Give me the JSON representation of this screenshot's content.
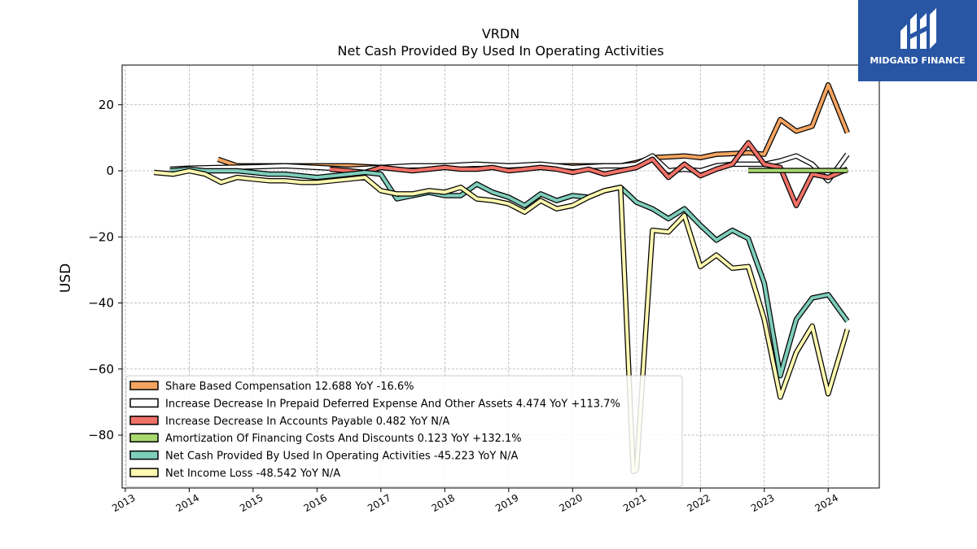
{
  "brand": {
    "name": "MIDGARD FINANCE",
    "icon": "midgard-logo-icon"
  },
  "chart_data": {
    "type": "line",
    "title": "VRDN",
    "subtitle": "Net Cash Provided By Used In Operating Activities",
    "ylabel": "USD",
    "xlabel": "",
    "ylim": [
      -96,
      32
    ],
    "xlim": [
      2012.95,
      2024.8
    ],
    "yticks": [
      20,
      0,
      -20,
      -40,
      -60,
      -80
    ],
    "ytick_labels": [
      "20",
      "0",
      "−20",
      "−40",
      "−60",
      "−80"
    ],
    "xticks": [
      2013,
      2014,
      2015,
      2016,
      2017,
      2018,
      2019,
      2020,
      2021,
      2022,
      2023,
      2024
    ],
    "xtick_labels": [
      "2013",
      "2014",
      "2015",
      "2016",
      "2017",
      "2018",
      "2019",
      "2020",
      "2021",
      "2022",
      "2023",
      "2024"
    ],
    "grid": true,
    "legend_position": "lower-left",
    "series": [
      {
        "name": "Share Based Compensation",
        "legend_label": "Share Based Compensation  12.688 YoY -16.6%",
        "color": "#f4a460",
        "x": [
          2014.45,
          2014.75,
          2015.0,
          2015.5,
          2016.0,
          2016.5,
          2017.0,
          2017.5,
          2018.0,
          2018.5,
          2019.0,
          2019.5,
          2020.0,
          2020.5,
          2020.75,
          2021.0,
          2021.25,
          2021.5,
          2021.75,
          2022.0,
          2022.25,
          2022.5,
          2022.75,
          2023.0,
          2023.25,
          2023.5,
          2023.75,
          2024.0,
          2024.3
        ],
        "y": [
          3.5,
          1.5,
          1.5,
          1.5,
          1.5,
          1.5,
          1.0,
          1.2,
          1.5,
          1.5,
          1.5,
          1.5,
          1.5,
          1.5,
          1.5,
          2.5,
          4.0,
          4.2,
          4.5,
          4.0,
          5.0,
          5.2,
          5.5,
          5.0,
          15.5,
          12.0,
          13.5,
          26.0,
          11.5
        ]
      },
      {
        "name": "Increase Decrease In Prepaid Deferred Expense And Other Assets",
        "legend_label": "Increase Decrease In Prepaid Deferred Expense And Other Assets  4.474 YoY +113.7%",
        "color": "#ffffff",
        "x": [
          2013.7,
          2014.0,
          2014.5,
          2015.0,
          2015.5,
          2016.0,
          2016.5,
          2017.0,
          2017.5,
          2018.0,
          2018.5,
          2019.0,
          2019.5,
          2020.0,
          2020.5,
          2020.75,
          2021.0,
          2021.25,
          2021.5,
          2021.75,
          2022.0,
          2022.25,
          2022.5,
          2022.75,
          2023.0,
          2023.25,
          2023.5,
          2023.75,
          2024.0,
          2024.3
        ],
        "y": [
          0.5,
          0.8,
          1.0,
          1.2,
          1.5,
          1.0,
          0.5,
          1.0,
          1.5,
          1.5,
          2.0,
          1.5,
          2.0,
          1.0,
          1.5,
          1.5,
          2.0,
          4.5,
          0.0,
          0.5,
          0.0,
          1.5,
          2.0,
          2.0,
          2.0,
          3.0,
          4.5,
          2.0,
          -3.0,
          5.0
        ]
      },
      {
        "name": "Increase Decrease In Accounts Payable",
        "legend_label": "Increase Decrease In Accounts Payable  0.482 YoY N/A",
        "color": "#f07167",
        "x": [
          2016.2,
          2016.5,
          2016.75,
          2017.0,
          2017.25,
          2017.5,
          2017.75,
          2018.0,
          2018.25,
          2018.5,
          2018.75,
          2019.0,
          2019.25,
          2019.5,
          2019.75,
          2020.0,
          2020.25,
          2020.5,
          2020.75,
          2021.0,
          2021.25,
          2021.5,
          2021.75,
          2022.0,
          2022.25,
          2022.5,
          2022.75,
          2023.0,
          2023.25,
          2023.5,
          2023.75,
          2024.0,
          2024.3
        ],
        "y": [
          0.5,
          0.0,
          -0.5,
          1.0,
          0.5,
          0.0,
          0.5,
          1.0,
          0.5,
          0.5,
          1.0,
          0.0,
          0.5,
          1.0,
          0.5,
          -0.5,
          0.5,
          -1.0,
          0.0,
          1.0,
          3.5,
          -2.0,
          2.0,
          -1.5,
          0.5,
          2.0,
          8.5,
          2.0,
          1.0,
          -10.5,
          -1.0,
          -2.0,
          0.5
        ]
      },
      {
        "name": "Amortization Of Financing Costs And Discounts",
        "legend_label": "Amortization Of Financing Costs And Discounts  0.123 YoY +132.1%",
        "color": "#a8d86e",
        "x": [
          2022.75,
          2023.0,
          2023.25,
          2023.5,
          2023.75,
          2024.0,
          2024.3
        ],
        "y": [
          0.1,
          0.1,
          0.1,
          0.1,
          0.1,
          0.1,
          0.1
        ]
      },
      {
        "name": "Net Cash Provided By Used In Operating Activities",
        "legend_label": "Net Cash Provided By Used In Operating Activities  -45.223 YoY N/A",
        "color": "#7fcdbb",
        "x": [
          2013.7,
          2014.0,
          2014.25,
          2014.5,
          2014.75,
          2015.0,
          2015.25,
          2015.5,
          2015.75,
          2016.0,
          2016.25,
          2016.5,
          2016.75,
          2017.0,
          2017.25,
          2017.5,
          2017.75,
          2018.0,
          2018.25,
          2018.5,
          2018.75,
          2019.0,
          2019.25,
          2019.5,
          2019.75,
          2020.0,
          2020.25,
          2020.5,
          2020.75,
          2021.0,
          2021.25,
          2021.5,
          2021.75,
          2022.0,
          2022.25,
          2022.5,
          2022.75,
          2023.0,
          2023.25,
          2023.5,
          2023.75,
          2024.0,
          2024.3
        ],
        "y": [
          0.0,
          0.5,
          0.0,
          0.0,
          0.0,
          -0.5,
          -1.0,
          -1.0,
          -1.5,
          -2.0,
          -1.5,
          -1.0,
          -0.5,
          -1.0,
          -8.5,
          -7.5,
          -6.5,
          -7.5,
          -7.5,
          -4.0,
          -6.5,
          -8.0,
          -10.5,
          -7.0,
          -9.0,
          -7.5,
          -8.0,
          -6.0,
          -5.0,
          -9.5,
          -11.5,
          -14.5,
          -11.5,
          -16.5,
          -21.0,
          -18.0,
          -20.5,
          -34.0,
          -62.0,
          -45.0,
          -38.5,
          -37.5,
          -45.5
        ]
      },
      {
        "name": "Net Income Loss",
        "legend_label": "Net Income Loss  -48.542 YoY N/A",
        "color": "#fff8b0",
        "x": [
          2013.45,
          2013.75,
          2014.0,
          2014.25,
          2014.5,
          2014.75,
          2015.0,
          2015.25,
          2015.5,
          2015.75,
          2016.0,
          2016.25,
          2016.5,
          2016.75,
          2017.0,
          2017.25,
          2017.5,
          2017.75,
          2018.0,
          2018.25,
          2018.5,
          2018.75,
          2019.0,
          2019.25,
          2019.5,
          2019.75,
          2020.0,
          2020.25,
          2020.5,
          2020.75,
          2020.95,
          2021.0,
          2021.25,
          2021.5,
          2021.75,
          2022.0,
          2022.25,
          2022.5,
          2022.75,
          2023.0,
          2023.25,
          2023.5,
          2023.75,
          2024.0,
          2024.3
        ],
        "y": [
          -0.5,
          -1.0,
          0.0,
          -1.0,
          -3.5,
          -2.0,
          -2.5,
          -3.0,
          -3.0,
          -3.5,
          -3.5,
          -3.0,
          -2.5,
          -2.0,
          -6.0,
          -7.0,
          -7.0,
          -6.0,
          -6.5,
          -5.0,
          -8.5,
          -9.0,
          -10.0,
          -12.5,
          -9.0,
          -11.5,
          -10.5,
          -8.0,
          -6.0,
          -5.0,
          -91.0,
          -90.5,
          -18.0,
          -18.5,
          -13.5,
          -29.0,
          -25.5,
          -29.5,
          -29.0,
          -45.0,
          -68.5,
          -55.0,
          -47.0,
          -67.5,
          -48.0
        ]
      }
    ]
  }
}
